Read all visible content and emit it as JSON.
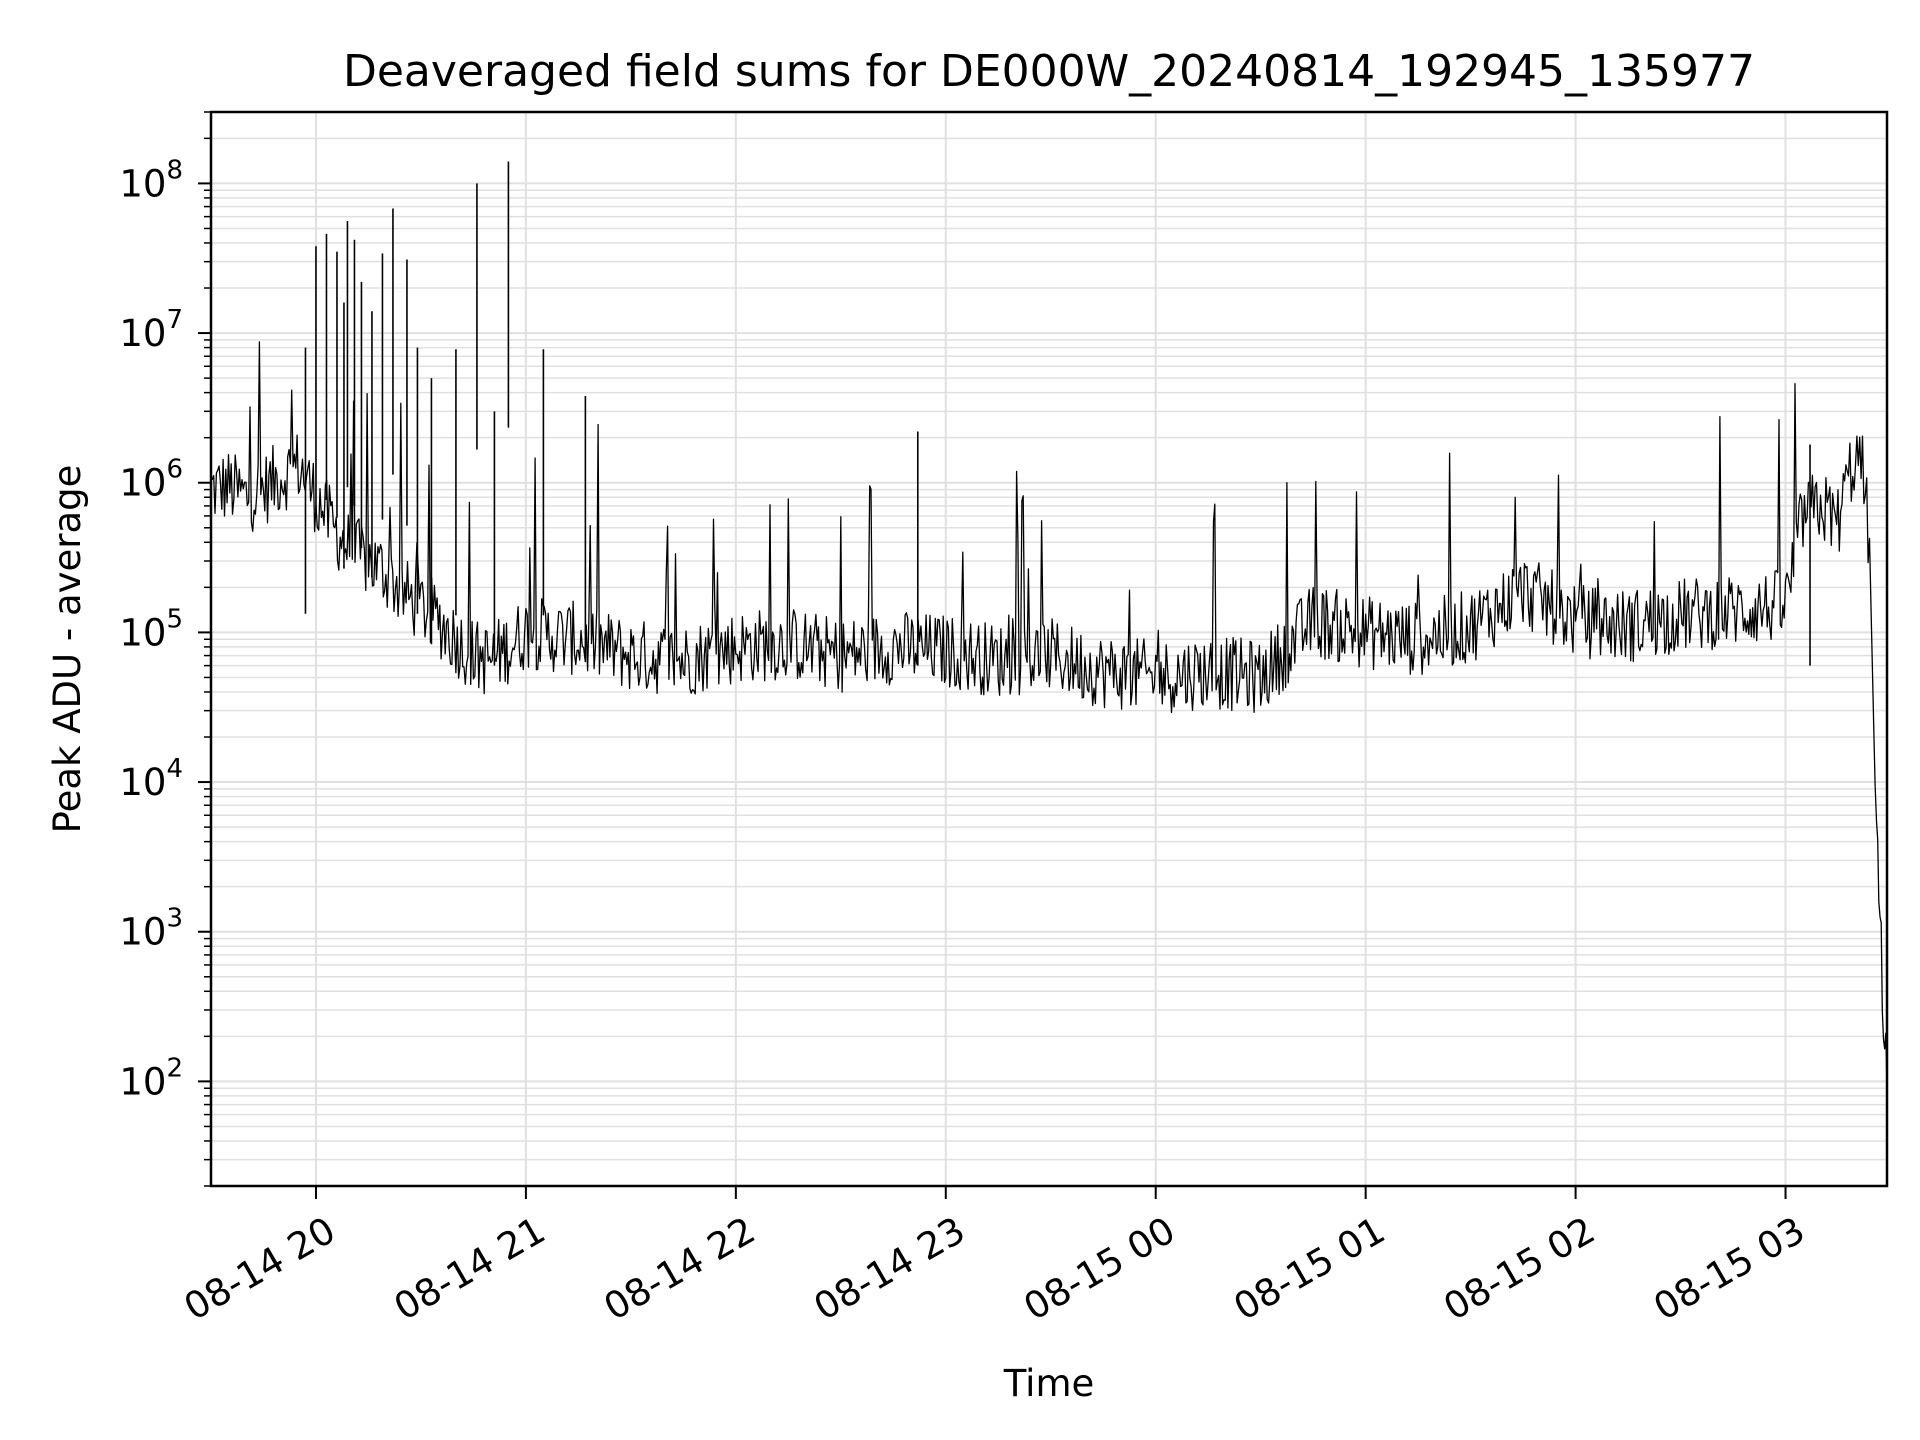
{
  "chart_data": {
    "type": "line",
    "title": "Deaveraged field sums for DE000W_20240814_192945_135977",
    "xlabel": "Time",
    "ylabel": "Peak ADU - average",
    "yscale": "log",
    "ylim": [
      20,
      300000000
    ],
    "xlim": [
      "2024-08-14 19:30",
      "2024-08-15 03:29"
    ],
    "grid": "on",
    "line_color": "#000000",
    "grid_color": "#e0e0e0",
    "x_ticks": [
      {
        "value": "2024-08-14 20:00",
        "label": "08-14 20"
      },
      {
        "value": "2024-08-14 21:00",
        "label": "08-14 21"
      },
      {
        "value": "2024-08-14 22:00",
        "label": "08-14 22"
      },
      {
        "value": "2024-08-14 23:00",
        "label": "08-14 23"
      },
      {
        "value": "2024-08-15 00:00",
        "label": "08-15 00"
      },
      {
        "value": "2024-08-15 01:00",
        "label": "08-15 01"
      },
      {
        "value": "2024-08-15 02:00",
        "label": "08-15 02"
      },
      {
        "value": "2024-08-15 03:00",
        "label": "08-15 03"
      }
    ],
    "y_ticks": [
      {
        "value": 100,
        "base": "10",
        "exp": "2"
      },
      {
        "value": 1000,
        "base": "10",
        "exp": "3"
      },
      {
        "value": 10000,
        "base": "10",
        "exp": "4"
      },
      {
        "value": 100000,
        "base": "10",
        "exp": "5"
      },
      {
        "value": 1000000,
        "base": "10",
        "exp": "6"
      },
      {
        "value": 10000000,
        "base": "10",
        "exp": "7"
      },
      {
        "value": 100000000,
        "base": "10",
        "exp": "8"
      }
    ],
    "series": [
      {
        "x": [
          "2024-08-14 19:30",
          "2024-08-14 19:35",
          "2024-08-14 19:40",
          "2024-08-14 19:45",
          "2024-08-14 19:50",
          "2024-08-14 19:55",
          "2024-08-14 20:00",
          "2024-08-14 20:05",
          "2024-08-14 20:10",
          "2024-08-14 20:15",
          "2024-08-14 20:20",
          "2024-08-14 20:25",
          "2024-08-14 20:30",
          "2024-08-14 20:35",
          "2024-08-14 20:40",
          "2024-08-14 20:45",
          "2024-08-14 20:50",
          "2024-08-14 21:00",
          "2024-08-14 21:15",
          "2024-08-14 21:30",
          "2024-08-14 21:45",
          "2024-08-14 22:00",
          "2024-08-14 22:15",
          "2024-08-14 22:30",
          "2024-08-14 22:45",
          "2024-08-14 23:00",
          "2024-08-14 23:15",
          "2024-08-14 23:30",
          "2024-08-14 23:45",
          "2024-08-15 00:00",
          "2024-08-15 00:15",
          "2024-08-15 00:30",
          "2024-08-15 00:45",
          "2024-08-15 01:00",
          "2024-08-15 01:15",
          "2024-08-15 01:30",
          "2024-08-15 01:45",
          "2024-08-15 02:00",
          "2024-08-15 02:15",
          "2024-08-15 02:30",
          "2024-08-15 02:45",
          "2024-08-15 03:00",
          "2024-08-15 03:05",
          "2024-08-15 03:10",
          "2024-08-15 03:15",
          "2024-08-15 03:18",
          "2024-08-15 03:20",
          "2024-08-15 03:22",
          "2024-08-15 03:24",
          "2024-08-15 03:26",
          "2024-08-15 03:27",
          "2024-08-15 03:28",
          "2024-08-15 03:29"
        ],
        "y": [
          900000,
          950000,
          800000,
          900000,
          1100000,
          1300000,
          800000,
          500000,
          350000,
          300000,
          250000,
          180000,
          150000,
          120000,
          90000,
          70000,
          65000,
          100000,
          90000,
          70000,
          65000,
          80000,
          85000,
          70000,
          80000,
          75000,
          65000,
          70000,
          55000,
          50000,
          55000,
          50000,
          120000,
          100000,
          90000,
          110000,
          190000,
          120000,
          110000,
          130000,
          140000,
          150000,
          600000,
          700000,
          550000,
          1100000,
          1500000,
          1200000,
          400000,
          4000,
          1000,
          300,
          90
        ]
      }
    ],
    "spikes": [
      {
        "x": "2024-08-14 19:57",
        "y": 8000000
      },
      {
        "x": "2024-08-14 20:00",
        "y": 38000000
      },
      {
        "x": "2024-08-14 20:03",
        "y": 46000000
      },
      {
        "x": "2024-08-14 20:06",
        "y": 35000000
      },
      {
        "x": "2024-08-14 20:08",
        "y": 16000000
      },
      {
        "x": "2024-08-14 20:09",
        "y": 56000000
      },
      {
        "x": "2024-08-14 20:11",
        "y": 42000000
      },
      {
        "x": "2024-08-14 20:13",
        "y": 22000000
      },
      {
        "x": "2024-08-14 20:16",
        "y": 14000000
      },
      {
        "x": "2024-08-14 20:19",
        "y": 34000000
      },
      {
        "x": "2024-08-14 20:22",
        "y": 68000000
      },
      {
        "x": "2024-08-14 20:26",
        "y": 31000000
      },
      {
        "x": "2024-08-14 20:29",
        "y": 8000000
      },
      {
        "x": "2024-08-14 20:33",
        "y": 5000000
      },
      {
        "x": "2024-08-14 20:40",
        "y": 7800000
      },
      {
        "x": "2024-08-14 20:46",
        "y": 100000000
      },
      {
        "x": "2024-08-14 20:51",
        "y": 3000000
      },
      {
        "x": "2024-08-14 20:55",
        "y": 140000000
      },
      {
        "x": "2024-08-14 21:05",
        "y": 7800000
      },
      {
        "x": "2024-08-14 21:17",
        "y": 3800000
      },
      {
        "x": "2024-08-14 22:52",
        "y": 2200000
      },
      {
        "x": "2024-08-15 03:07",
        "y": 1800000
      }
    ]
  }
}
